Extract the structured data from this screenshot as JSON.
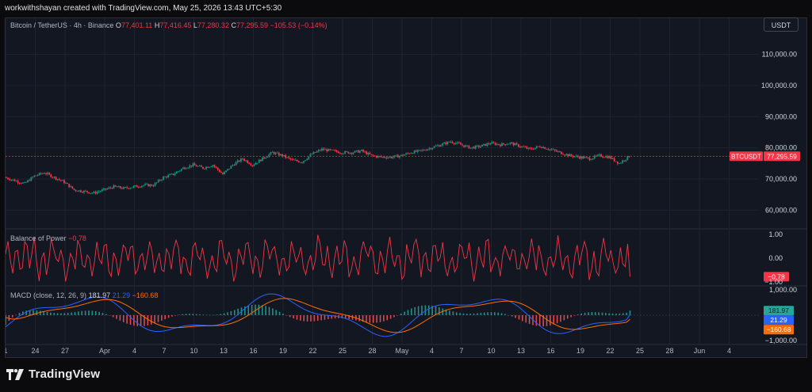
{
  "credit": "workwithshayan created with TradingView.com, May 25, 2026 13:43 UTC+5:30",
  "symbol_title": "Bitcoin / TetherUS · 4h · Binance",
  "ohlc": {
    "o_label": "O",
    "o": "77,401.11",
    "h_label": "H",
    "h": "77,416.45",
    "l_label": "L",
    "l": "77,280.32",
    "c_label": "C",
    "c": "77,295.59",
    "change": "−105.53 (−0.14%)"
  },
  "currency_button": "USDT",
  "price_tag": {
    "symbol": "BTCUSDT",
    "value": "77,295.59"
  },
  "bop": {
    "title": "Balance of Power",
    "value": "−0.78",
    "color": "#f23645"
  },
  "macd": {
    "title": "MACD (close, 12, 26, 9)",
    "hist": "181.97",
    "macd": "21.29",
    "signal": "−160.68",
    "hist_color": "#26a69a",
    "macd_color": "#2962ff",
    "signal_color": "#ff6d00"
  },
  "brand": "TradingView",
  "colors": {
    "up": "#089981",
    "down": "#f23645",
    "grid": "#1f2330",
    "bg": "#131722"
  },
  "chart_data": [
    {
      "type": "candlestick",
      "title": "Bitcoin / TetherUS · 4h · Binance",
      "y_ticks": [
        "110,000.00",
        "100,000.00",
        "90,000.00",
        "80,000.00",
        "70,000.00",
        "60,000.00"
      ],
      "y_tick_values": [
        110000,
        100000,
        90000,
        80000,
        70000,
        60000
      ],
      "ylim": [
        55000,
        117000
      ],
      "x_ticks": [
        "1",
        "24",
        "27",
        "Apr",
        "4",
        "7",
        "10",
        "13",
        "16",
        "19",
        "22",
        "25",
        "28",
        "May",
        "4",
        "7",
        "10",
        "13",
        "16",
        "19",
        "22",
        "25",
        "28",
        "Jun",
        "4"
      ],
      "x_tick_pos": [
        0,
        3,
        6,
        10,
        13,
        16,
        19,
        22,
        25,
        28,
        31,
        34,
        37,
        40,
        43,
        46,
        49,
        52,
        55,
        58,
        61,
        64,
        67,
        70,
        73
      ],
      "day_span": [
        0,
        76
      ],
      "data_days": [
        0,
        63
      ],
      "close_path": [
        [
          0,
          70500
        ],
        [
          1,
          69500
        ],
        [
          2,
          68500
        ],
        [
          3,
          71000
        ],
        [
          4,
          72000
        ],
        [
          5,
          70500
        ],
        [
          6,
          69000
        ],
        [
          7,
          66500
        ],
        [
          8,
          66000
        ],
        [
          9,
          65500
        ],
        [
          10,
          66500
        ],
        [
          11,
          67500
        ],
        [
          12,
          67000
        ],
        [
          13,
          67500
        ],
        [
          14,
          68000
        ],
        [
          15,
          68000
        ],
        [
          16,
          70500
        ],
        [
          17,
          71500
        ],
        [
          18,
          73500
        ],
        [
          19,
          74500
        ],
        [
          20,
          73500
        ],
        [
          21,
          74500
        ],
        [
          22,
          71500
        ],
        [
          23,
          74500
        ],
        [
          24,
          76500
        ],
        [
          25,
          74500
        ],
        [
          26,
          76500
        ],
        [
          27,
          78500
        ],
        [
          28,
          77500
        ],
        [
          29,
          76000
        ],
        [
          30,
          75500
        ],
        [
          31,
          78000
        ],
        [
          32,
          79500
        ],
        [
          33,
          79000
        ],
        [
          34,
          78500
        ],
        [
          35,
          78500
        ],
        [
          36,
          79000
        ],
        [
          37,
          77500
        ],
        [
          38,
          77000
        ],
        [
          39,
          77000
        ],
        [
          40,
          77500
        ],
        [
          41,
          78500
        ],
        [
          42,
          79000
        ],
        [
          43,
          80000
        ],
        [
          44,
          81000
        ],
        [
          45,
          82000
        ],
        [
          46,
          81000
        ],
        [
          47,
          80000
        ],
        [
          48,
          80500
        ],
        [
          49,
          81500
        ],
        [
          50,
          81000
        ],
        [
          51,
          81500
        ],
        [
          52,
          80500
        ],
        [
          53,
          79500
        ],
        [
          54,
          80500
        ],
        [
          55,
          79500
        ],
        [
          56,
          78500
        ],
        [
          57,
          77500
        ],
        [
          58,
          77000
        ],
        [
          59,
          76500
        ],
        [
          60,
          77500
        ],
        [
          61,
          77000
        ],
        [
          62,
          75000
        ],
        [
          63,
          77295
        ]
      ]
    },
    {
      "type": "line",
      "title": "Balance of Power",
      "y_ticks": [
        "1.00",
        "0.00",
        "−1.00"
      ],
      "y_tick_values": [
        1,
        0,
        -1
      ],
      "ylim": [
        -1.1,
        1.1
      ],
      "last": -0.78
    },
    {
      "type": "line",
      "title": "MACD (close, 12, 26, 9)",
      "series_labels": [
        "Histogram",
        "MACD",
        "Signal"
      ],
      "y_ticks": [
        "1,000.00",
        "−1,000.00"
      ],
      "y_tick_values": [
        1000,
        -1000
      ],
      "ylim": [
        -1100,
        1100
      ],
      "last": {
        "histogram": 181.97,
        "macd": 21.29,
        "signal": -160.68
      }
    }
  ]
}
